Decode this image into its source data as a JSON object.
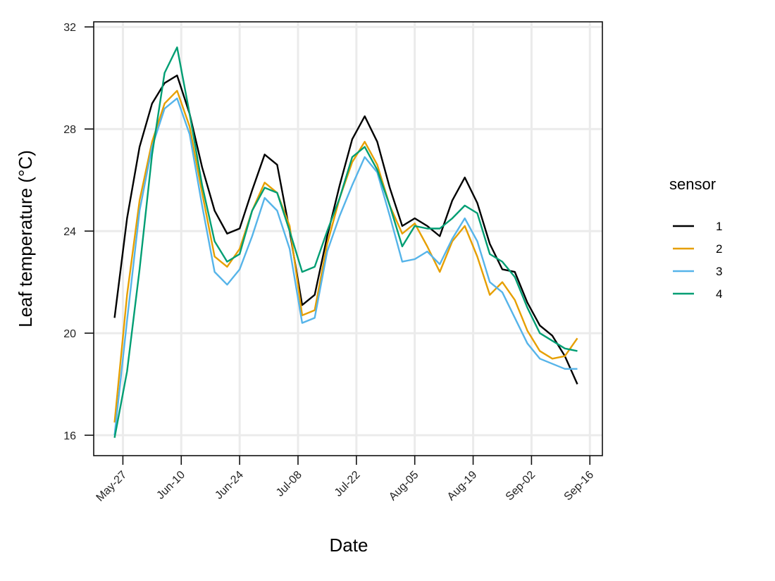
{
  "chart_data": {
    "type": "line",
    "x_label": "Date",
    "y_label": "Leaf temperature (°C)",
    "x": [
      "May-25",
      "May-28",
      "May-31",
      "Jun-03",
      "Jun-06",
      "Jun-09",
      "Jun-12",
      "Jun-15",
      "Jun-18",
      "Jun-21",
      "Jun-24",
      "Jun-27",
      "Jun-30",
      "Jul-03",
      "Jul-06",
      "Jul-09",
      "Jul-12",
      "Jul-15",
      "Jul-18",
      "Jul-21",
      "Jul-24",
      "Jul-27",
      "Jul-30",
      "Aug-02",
      "Aug-05",
      "Aug-08",
      "Aug-11",
      "Aug-14",
      "Aug-17",
      "Aug-20",
      "Aug-23",
      "Aug-26",
      "Aug-29",
      "Sep-01",
      "Sep-04",
      "Sep-07",
      "Sep-10",
      "Sep-13"
    ],
    "series": [
      {
        "name": "1",
        "color": "#000000",
        "values": [
          20.6,
          24.5,
          27.3,
          29.0,
          29.8,
          30.1,
          28.6,
          26.5,
          24.8,
          23.9,
          24.1,
          25.6,
          27.0,
          26.6,
          24.0,
          21.1,
          21.5,
          23.8,
          25.8,
          27.6,
          28.5,
          27.5,
          25.7,
          24.2,
          24.5,
          24.2,
          23.8,
          25.2,
          26.1,
          25.1,
          23.5,
          22.5,
          22.4,
          21.2,
          20.3,
          19.9,
          19.1,
          18.0
        ]
      },
      {
        "name": "2",
        "color": "#E69F00",
        "values": [
          16.5,
          21.5,
          25.2,
          27.5,
          29.0,
          29.5,
          28.1,
          25.5,
          23.0,
          22.6,
          23.3,
          24.8,
          25.9,
          25.5,
          24.2,
          20.7,
          20.9,
          23.5,
          25.3,
          26.7,
          27.5,
          26.6,
          25.0,
          23.9,
          24.3,
          23.4,
          22.4,
          23.6,
          24.2,
          23.0,
          21.5,
          22.0,
          21.3,
          20.1,
          19.3,
          19.0,
          19.1,
          19.8
        ]
      },
      {
        "name": "3",
        "color": "#56B4E9",
        "values": [
          16.0,
          20.5,
          24.8,
          27.3,
          28.8,
          29.2,
          27.8,
          25.0,
          22.4,
          21.9,
          22.5,
          23.8,
          25.3,
          24.8,
          23.3,
          20.4,
          20.6,
          23.2,
          24.6,
          25.8,
          26.9,
          26.3,
          24.6,
          22.8,
          22.9,
          23.2,
          22.7,
          23.7,
          24.5,
          23.6,
          22.0,
          21.6,
          20.6,
          19.6,
          19.0,
          18.8,
          18.6,
          18.6
        ]
      },
      {
        "name": "4",
        "color": "#009E73",
        "values": [
          15.9,
          18.5,
          22.5,
          27.0,
          30.2,
          31.2,
          28.6,
          25.8,
          23.6,
          22.8,
          23.1,
          24.8,
          25.7,
          25.5,
          24.0,
          22.4,
          22.6,
          24.0,
          25.3,
          26.9,
          27.3,
          26.4,
          25.0,
          23.4,
          24.2,
          24.1,
          24.1,
          24.5,
          25.0,
          24.7,
          23.1,
          22.8,
          22.2,
          21.0,
          20.0,
          19.7,
          19.4,
          19.3
        ]
      }
    ],
    "xlim": [
      "May-20",
      "Sep-19"
    ],
    "xticks": [
      "May-27",
      "Jun-10",
      "Jun-24",
      "Jul-08",
      "Jul-22",
      "Aug-05",
      "Aug-19",
      "Sep-02",
      "Sep-16"
    ],
    "ylim": [
      15.2,
      32.2
    ],
    "yticks": [
      16,
      20,
      24,
      28,
      32
    ],
    "grid": true,
    "legend_title": "sensor",
    "legend_position": "right"
  }
}
